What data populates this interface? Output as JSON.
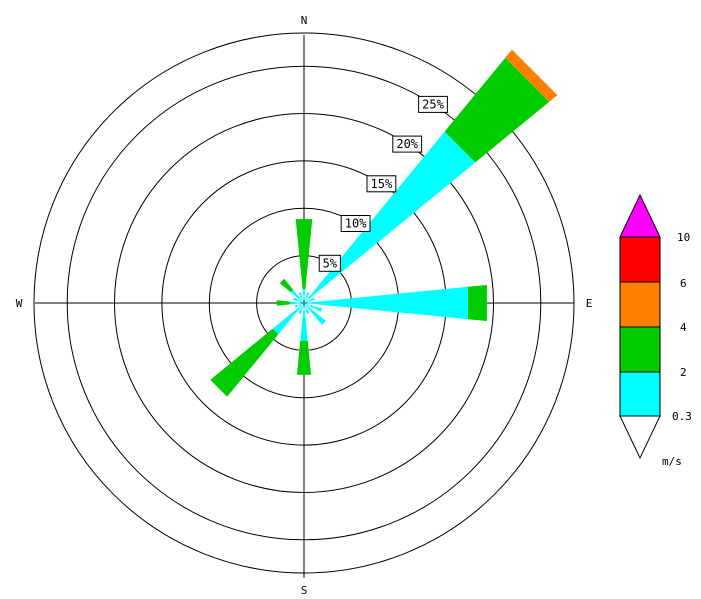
{
  "chart_data": {
    "type": "wind-rose",
    "directions": [
      "N",
      "NNE",
      "NE",
      "ENE",
      "E",
      "ESE",
      "SE",
      "SSE",
      "S",
      "SSW",
      "SW",
      "WSW",
      "W",
      "WNW",
      "NW",
      "NNW"
    ],
    "direction_angles_deg": [
      0,
      22.5,
      45,
      67.5,
      90,
      112.5,
      135,
      157.5,
      180,
      202.5,
      225,
      247.5,
      270,
      292.5,
      315,
      337.5
    ],
    "compass_labels": {
      "n": "N",
      "e": "E",
      "s": "S",
      "w": "W"
    },
    "rings": [
      {
        "value": 5,
        "label": "5%"
      },
      {
        "value": 10,
        "label": "10%"
      },
      {
        "value": 15,
        "label": "15%"
      },
      {
        "value": 20,
        "label": "20%"
      },
      {
        "value": 25,
        "label": "25%"
      }
    ],
    "rmax_percent": 28.5,
    "speed_classes": [
      {
        "range": "0.3-2",
        "color": "#00ffff"
      },
      {
        "range": "2-4",
        "color": "#00cc00"
      },
      {
        "range": "4-6",
        "color": "#ff8000"
      },
      {
        "range": "6-10",
        "color": "#ff0000"
      },
      {
        "range": ">10",
        "color": "#ff00ff"
      }
    ],
    "series": [
      {
        "dir": "N",
        "cum_percent": [
          1.5,
          8.9
        ]
      },
      {
        "dir": "NNE",
        "cum_percent": [
          1.2,
          1.2
        ]
      },
      {
        "dir": "NE",
        "cum_percent": [
          23.4,
          33.5,
          34.6
        ]
      },
      {
        "dir": "ENE",
        "cum_percent": [
          1.2,
          1.2
        ]
      },
      {
        "dir": "E",
        "cum_percent": [
          17.4,
          19.4
        ]
      },
      {
        "dir": "ESE",
        "cum_percent": [
          2.0,
          2.0
        ]
      },
      {
        "dir": "SE",
        "cum_percent": [
          3.0,
          3.0
        ]
      },
      {
        "dir": "SSE",
        "cum_percent": [
          1.2,
          1.2
        ]
      },
      {
        "dir": "S",
        "cum_percent": [
          4.0,
          7.6
        ]
      },
      {
        "dir": "SSW",
        "cum_percent": [
          1.2,
          1.2
        ]
      },
      {
        "dir": "SW",
        "cum_percent": [
          4.3,
          12.8
        ]
      },
      {
        "dir": "WSW",
        "cum_percent": [
          1.0,
          1.0
        ]
      },
      {
        "dir": "W",
        "cum_percent": [
          1.5,
          2.9
        ]
      },
      {
        "dir": "WNW",
        "cum_percent": [
          1.2,
          1.2
        ]
      },
      {
        "dir": "NW",
        "cum_percent": [
          1.8,
          3.3
        ]
      },
      {
        "dir": "NNW",
        "cum_percent": [
          1.2,
          1.2
        ]
      }
    ],
    "legend": {
      "tick_labels": [
        "10",
        "6",
        "4",
        "2",
        "0.3"
      ],
      "unit": "m/s",
      "colors_top_to_bottom": [
        "#ff00ff",
        "#ff0000",
        "#ff8000",
        "#00cc00",
        "#00ffff",
        "#ffffff"
      ]
    }
  }
}
